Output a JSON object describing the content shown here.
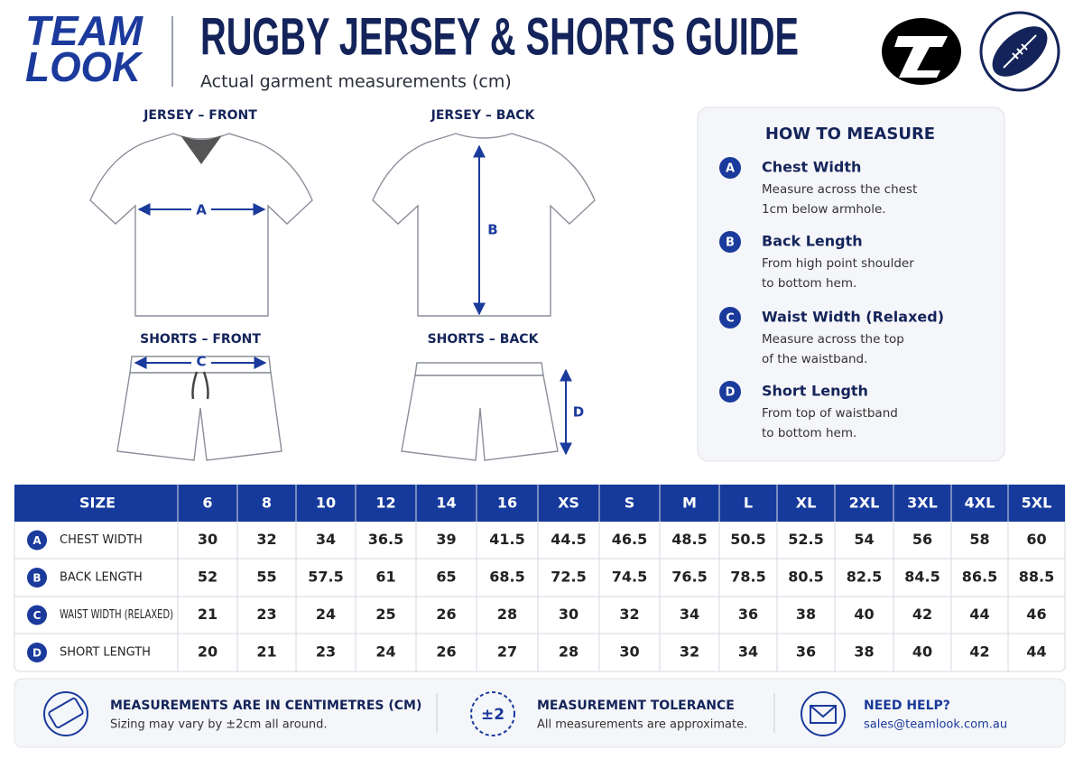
{
  "header": {
    "brand_line1": "TEAM",
    "brand_line2": "LOOK",
    "title": "RUGBY JERSEY & SHORTS GUIDE",
    "subtitle": "Actual garment measurements (cm)"
  },
  "diagrams": [
    {
      "label": "JERSEY – FRONT",
      "marker": "A"
    },
    {
      "label": "JERSEY – BACK",
      "marker": "B"
    },
    {
      "label": "SHORTS – FRONT",
      "marker": "C"
    },
    {
      "label": "SHORTS – BACK",
      "marker": "D"
    }
  ],
  "how_to": {
    "title": "HOW TO MEASURE",
    "items": [
      {
        "letter": "A",
        "name": "Chest Width",
        "lines": [
          "Measure across the chest",
          "1cm below armhole."
        ]
      },
      {
        "letter": "B",
        "name": "Back Length",
        "lines": [
          "From high point shoulder",
          "to bottom hem."
        ]
      },
      {
        "letter": "C",
        "name": "Waist Width (Relaxed)",
        "lines": [
          "Measure across the top",
          "of the waistband."
        ]
      },
      {
        "letter": "D",
        "name": "Short Length",
        "lines": [
          "From top of waistband",
          "to bottom hem."
        ]
      }
    ]
  },
  "table": {
    "header": [
      "SIZE",
      "6",
      "8",
      "10",
      "12",
      "14",
      "16",
      "XS",
      "S",
      "M",
      "L",
      "XL",
      "2XL",
      "3XL",
      "4XL",
      "5XL"
    ],
    "rows": [
      {
        "letter": "A",
        "label": "CHEST WIDTH",
        "values": [
          30,
          32,
          34,
          36.5,
          39,
          41.5,
          44.5,
          46.5,
          48.5,
          50.5,
          52.5,
          54,
          56,
          58,
          60
        ]
      },
      {
        "letter": "B",
        "label": "BACK LENGTH",
        "values": [
          52,
          55,
          57.5,
          61,
          65,
          68.5,
          72.5,
          74.5,
          76.5,
          78.5,
          80.5,
          82.5,
          84.5,
          86.5,
          88.5
        ]
      },
      {
        "letter": "C",
        "label": "WAIST WIDTH (RELAXED)",
        "values": [
          21,
          23,
          24,
          25,
          26,
          28,
          30,
          32,
          34,
          36,
          38,
          40,
          42,
          44,
          46
        ]
      },
      {
        "letter": "D",
        "label": "SHORT LENGTH",
        "values": [
          20,
          21,
          23,
          24,
          26,
          27,
          28,
          30,
          32,
          34,
          36,
          38,
          40,
          42,
          44
        ]
      }
    ]
  },
  "footer": [
    {
      "title": "MEASUREMENTS ARE IN CENTIMETRES (CM)",
      "text": "Sizing may vary by ±2cm all around."
    },
    {
      "badge": "±2",
      "title": "MEASUREMENT TOLERANCE",
      "text": "All measurements are approximate."
    },
    {
      "title": "NEED HELP?",
      "text": "sales@teamlook.com.au"
    }
  ]
}
